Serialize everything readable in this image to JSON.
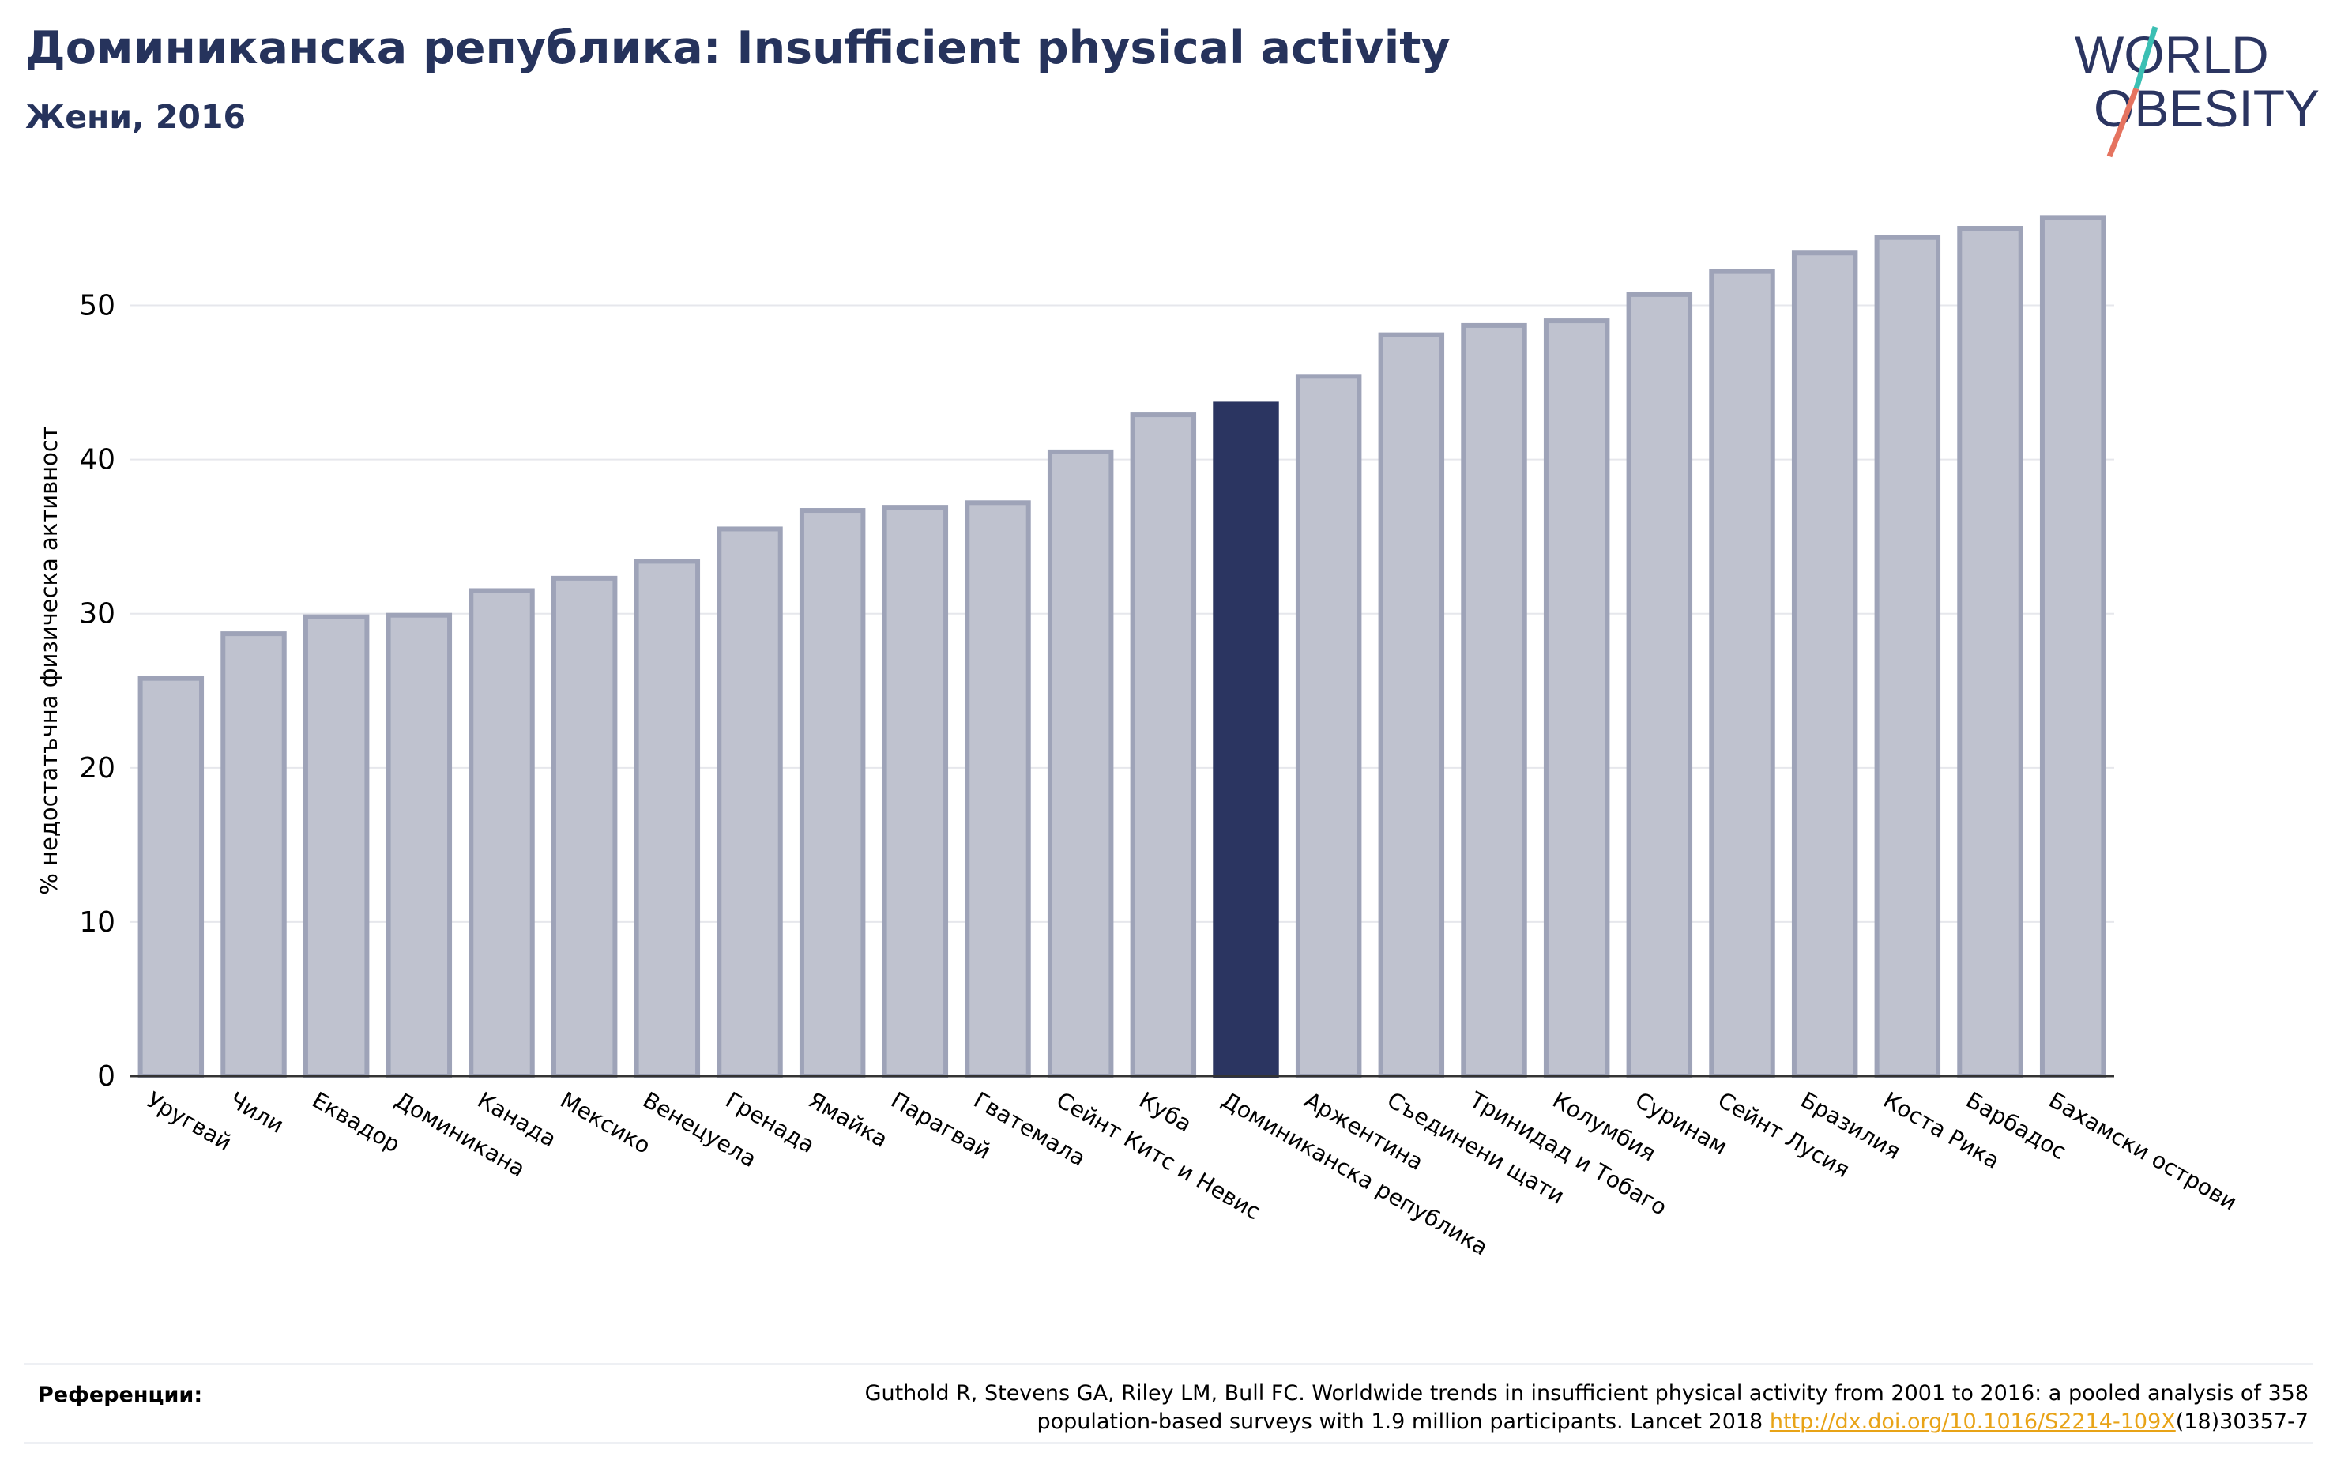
{
  "header": {
    "title": "Доминиканска република: Insufficient physical activity",
    "subtitle": "Жени, 2016"
  },
  "logo": {
    "line1": "WORLD",
    "line2": "OBESITY"
  },
  "colors": {
    "highlight": "#2b3561",
    "bar": "#bfc2cf",
    "bar_border": "#9ea3b8",
    "text": "#26335c",
    "link": "#e8a317"
  },
  "chart_data": {
    "type": "bar",
    "ylabel": "% недостатъчна физическа активност",
    "ylim": [
      0,
      57
    ],
    "yticks": [
      0,
      10,
      20,
      30,
      40,
      50
    ],
    "grid": true,
    "highlight": "Доминиканска република",
    "categories": [
      "Уругвай",
      "Чили",
      "Еквадор",
      "Доминикана",
      "Канада",
      "Мексико",
      "Венецуела",
      "Гренада",
      "Ямайка",
      "Парагвай",
      "Гватемала",
      "Сейнт Китс и Невис",
      "Куба",
      "Доминиканска република",
      "Аржентина",
      "Съединени щати",
      "Тринидад и Тобаго",
      "Колумбия",
      "Суринам",
      "Сейнт Лусия",
      "Бразилия",
      "Коста Рика",
      "Барбадос",
      "Бахамски острови"
    ],
    "values": [
      25.8,
      28.7,
      29.8,
      29.9,
      31.5,
      32.3,
      33.4,
      35.5,
      36.7,
      36.9,
      37.2,
      40.5,
      42.9,
      43.6,
      45.4,
      48.1,
      48.7,
      49.0,
      50.7,
      52.2,
      53.4,
      54.4,
      55.0,
      55.7
    ]
  },
  "references": {
    "label": "Референции:",
    "line1": "Guthold R, Stevens GA, Riley LM, Bull FC. Worldwide trends in insufficient physical activity from 2001 to 2016: a pooled analysis of 358",
    "line2_prefix": "population-based surveys with 1.9 million participants. Lancet 2018 ",
    "link": "http://dx.doi.org/10.1016/S2214-109X",
    "line2_suffix": "(18)30357-7"
  }
}
